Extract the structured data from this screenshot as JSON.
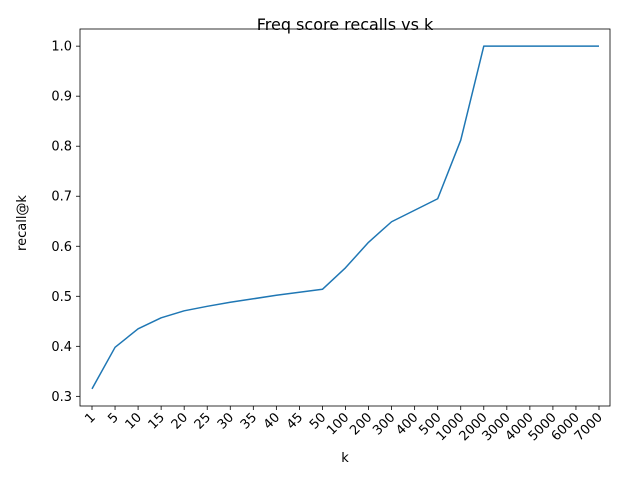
{
  "chart_data": {
    "type": "line",
    "title": "Freq score recalls vs k",
    "xlabel": "k",
    "ylabel": "recall@k",
    "categories": [
      "1",
      "5",
      "10",
      "15",
      "20",
      "25",
      "30",
      "35",
      "40",
      "45",
      "50",
      "100",
      "200",
      "300",
      "400",
      "500",
      "1000",
      "2000",
      "3000",
      "4000",
      "5000",
      "6000",
      "7000"
    ],
    "series": [
      {
        "values": [
          0.315,
          0.398,
          0.435,
          0.457,
          0.471,
          0.48,
          0.488,
          0.495,
          0.502,
          0.508,
          0.514,
          0.557,
          0.608,
          0.649,
          0.672,
          0.695,
          0.812,
          1.0,
          1.0,
          1.0,
          1.0,
          1.0,
          1.0
        ],
        "color": "#1f77b4"
      }
    ],
    "yticks": [
      "0.3",
      "0.4",
      "0.5",
      "0.6",
      "0.7",
      "0.8",
      "0.9",
      "1.0"
    ],
    "ylim": [
      0.2807,
      1.0343
    ],
    "grid": false,
    "legend": "none"
  }
}
